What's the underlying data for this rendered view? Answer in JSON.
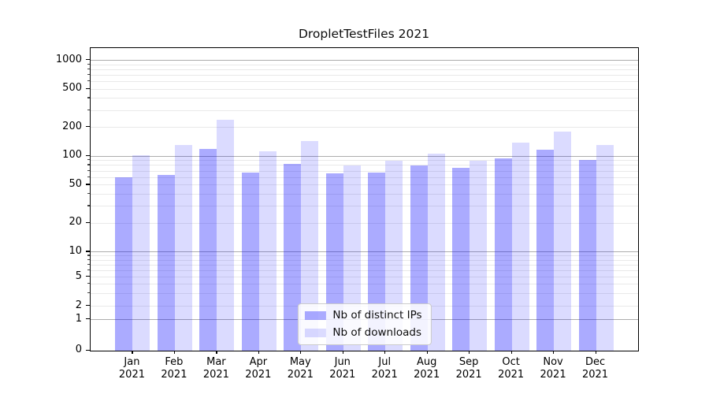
{
  "chart_data": {
    "type": "bar",
    "title": "DropletTestFiles 2021",
    "categories": [
      "Jan",
      "Feb",
      "Mar",
      "Apr",
      "May",
      "Jun",
      "Jul",
      "Aug",
      "Sep",
      "Oct",
      "Nov",
      "Dec"
    ],
    "category_year": "2021",
    "series": [
      {
        "name": "Nb of distinct IPs",
        "color": "rgba(0,0,255,0.33)",
        "values": [
          60,
          64,
          120,
          67,
          83,
          66,
          68,
          80,
          76,
          95,
          117,
          91
        ]
      },
      {
        "name": "Nb of downloads",
        "color": "rgba(0,0,255,0.14)",
        "values": [
          102,
          130,
          242,
          112,
          144,
          80,
          89,
          106,
          90,
          138,
          181,
          131
        ]
      }
    ],
    "yscale": "symlog",
    "yticks": [
      1000,
      500,
      200,
      100,
      50,
      20,
      10,
      5,
      2,
      1,
      0
    ],
    "ylim": [
      0,
      1333
    ],
    "grid": "both",
    "major_grid_values": [
      1,
      10,
      100,
      1000
    ],
    "legend_position": "lower center",
    "legend_labels": [
      "Nb of distinct IPs",
      "Nb of downloads"
    ]
  },
  "colors": {
    "major_grid": "#adadad",
    "minor_grid": "#e9e9e9",
    "spine": "#000000",
    "background": "#ffffff"
  }
}
